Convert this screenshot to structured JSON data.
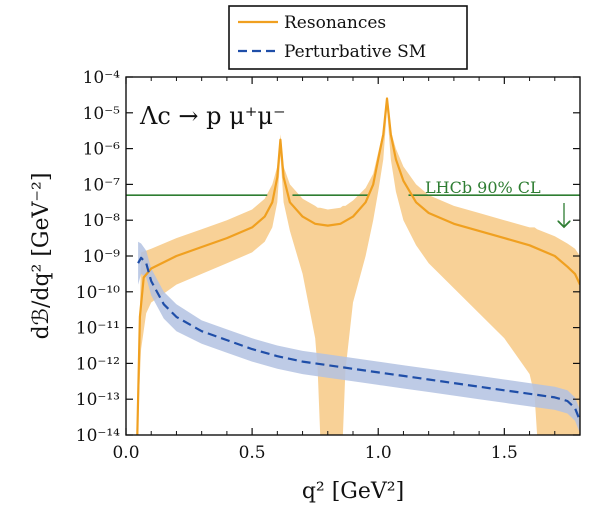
{
  "chart_data": {
    "type": "line",
    "xlabel": "q² [GeV²]",
    "ylabel": "dℬ/dq² [GeV⁻²]",
    "xlim": [
      0.0,
      1.8
    ],
    "ylim_log10": [
      -14,
      -4
    ],
    "yscale": "log",
    "x_ticks": [
      "0.0",
      "0.5",
      "1.0",
      "1.5"
    ],
    "x_tick_values": [
      0.0,
      0.5,
      1.0,
      1.5
    ],
    "y_ticks": [
      "10⁻¹⁴",
      "10⁻¹³",
      "10⁻¹²",
      "10⁻¹¹",
      "10⁻¹⁰",
      "10⁻⁹",
      "10⁻⁸",
      "10⁻⁷",
      "10⁻⁶",
      "10⁻⁵",
      "10⁻⁴"
    ],
    "y_tick_exponents": [
      -14,
      -13,
      -12,
      -11,
      -10,
      -9,
      -8,
      -7,
      -6,
      -5,
      -4
    ],
    "annotation": "Λc → p μ⁺μ⁻",
    "legend_position": "top-center, outside plot",
    "series": [
      {
        "name": "Resonances",
        "color": "#f0a020",
        "style": "solid",
        "x": [
          0.045,
          0.055,
          0.07,
          0.1,
          0.2,
          0.3,
          0.4,
          0.5,
          0.55,
          0.58,
          0.6,
          0.612,
          0.625,
          0.65,
          0.7,
          0.75,
          0.8,
          0.85,
          0.9,
          0.95,
          0.98,
          1.0,
          1.02,
          1.035,
          1.05,
          1.07,
          1.1,
          1.15,
          1.2,
          1.3,
          1.4,
          1.5,
          1.6,
          1.7,
          1.75,
          1.78,
          1.8
        ],
        "y_log10": [
          -14.0,
          -10.7,
          -9.6,
          -9.35,
          -9.0,
          -8.75,
          -8.5,
          -8.2,
          -7.9,
          -7.5,
          -6.8,
          -5.75,
          -6.8,
          -7.5,
          -7.9,
          -8.1,
          -8.15,
          -8.1,
          -7.9,
          -7.5,
          -7.0,
          -6.3,
          -5.6,
          -4.6,
          -5.6,
          -6.3,
          -6.9,
          -7.5,
          -7.8,
          -8.1,
          -8.3,
          -8.5,
          -8.7,
          -9.0,
          -9.3,
          -9.5,
          -9.8
        ]
      },
      {
        "name": "Perturbative SM",
        "color": "#1f4ea8",
        "style": "dashed",
        "x": [
          0.048,
          0.06,
          0.08,
          0.1,
          0.15,
          0.2,
          0.3,
          0.4,
          0.5,
          0.6,
          0.7,
          0.8,
          0.9,
          1.0,
          1.1,
          1.2,
          1.3,
          1.4,
          1.5,
          1.6,
          1.7,
          1.75,
          1.78,
          1.8
        ],
        "y_log10": [
          -9.2,
          -9.05,
          -9.2,
          -9.7,
          -10.35,
          -10.7,
          -11.1,
          -11.35,
          -11.6,
          -11.8,
          -11.95,
          -12.05,
          -12.15,
          -12.25,
          -12.35,
          -12.45,
          -12.55,
          -12.65,
          -12.75,
          -12.85,
          -12.95,
          -13.05,
          -13.25,
          -13.6
        ]
      }
    ],
    "bands": [
      {
        "series": "Resonances",
        "color": "#f7c985",
        "x": [
          0.045,
          0.06,
          0.08,
          0.1,
          0.2,
          0.3,
          0.4,
          0.5,
          0.55,
          0.58,
          0.6,
          0.612,
          0.625,
          0.65,
          0.7,
          0.75,
          0.76,
          0.77,
          0.8,
          0.85,
          0.86,
          0.87,
          0.9,
          0.95,
          0.98,
          1.0,
          1.02,
          1.035,
          1.05,
          1.07,
          1.1,
          1.15,
          1.2,
          1.3,
          1.4,
          1.5,
          1.6,
          1.62,
          1.63,
          1.7,
          1.75,
          1.78,
          1.8
        ],
        "upper_log10": [
          -14.0,
          -8.9,
          -8.85,
          -8.8,
          -8.5,
          -8.25,
          -8.0,
          -7.7,
          -7.4,
          -7.0,
          -6.5,
          -5.6,
          -6.5,
          -7.0,
          -7.4,
          -7.6,
          -7.65,
          -7.65,
          -7.7,
          -7.65,
          -7.6,
          -7.6,
          -7.45,
          -7.1,
          -6.7,
          -6.1,
          -5.5,
          -4.55,
          -5.5,
          -6.0,
          -6.5,
          -7.0,
          -7.3,
          -7.6,
          -7.8,
          -8.0,
          -8.2,
          -8.2,
          -8.25,
          -8.45,
          -8.65,
          -8.8,
          -9.0
        ],
        "lower_log10": [
          -14.0,
          -11.6,
          -10.6,
          -10.3,
          -9.8,
          -9.5,
          -9.2,
          -8.9,
          -8.6,
          -8.2,
          -7.5,
          -6.2,
          -7.5,
          -8.3,
          -9.5,
          -11.3,
          -12.2,
          -14.0,
          -14.0,
          -14.0,
          -14.0,
          -12.2,
          -10.3,
          -9.0,
          -8.0,
          -7.2,
          -6.3,
          -4.9,
          -6.3,
          -7.2,
          -8.0,
          -8.7,
          -9.2,
          -9.9,
          -10.6,
          -11.3,
          -12.3,
          -12.9,
          -14.0,
          -14.0,
          -14.0,
          -14.0,
          -14.0
        ]
      },
      {
        "series": "Perturbative SM",
        "color": "#b3c2e2",
        "x": [
          0.048,
          0.06,
          0.08,
          0.1,
          0.15,
          0.2,
          0.3,
          0.4,
          0.5,
          0.6,
          0.7,
          0.8,
          0.9,
          1.0,
          1.1,
          1.2,
          1.3,
          1.4,
          1.5,
          1.6,
          1.7,
          1.75,
          1.78,
          1.8
        ],
        "upper_log10": [
          -8.6,
          -8.65,
          -8.85,
          -9.35,
          -10.0,
          -10.35,
          -10.8,
          -11.05,
          -11.3,
          -11.5,
          -11.65,
          -11.75,
          -11.85,
          -11.95,
          -12.05,
          -12.15,
          -12.25,
          -12.35,
          -12.45,
          -12.55,
          -12.65,
          -12.75,
          -12.95,
          -13.3
        ],
        "lower_log10": [
          -9.8,
          -9.5,
          -9.6,
          -10.1,
          -10.75,
          -11.1,
          -11.45,
          -11.7,
          -11.95,
          -12.15,
          -12.3,
          -12.4,
          -12.5,
          -12.6,
          -12.7,
          -12.8,
          -12.9,
          -13.0,
          -13.1,
          -13.2,
          -13.3,
          -13.4,
          -13.6,
          -13.95
        ]
      }
    ],
    "reference_lines": [
      {
        "label": "LHCb 90% CL",
        "color": "#2e7d32",
        "y_log10": -7.3,
        "gaps_x": [
          [
            0.56,
            0.66
          ],
          [
            0.96,
            1.12
          ]
        ]
      }
    ]
  }
}
